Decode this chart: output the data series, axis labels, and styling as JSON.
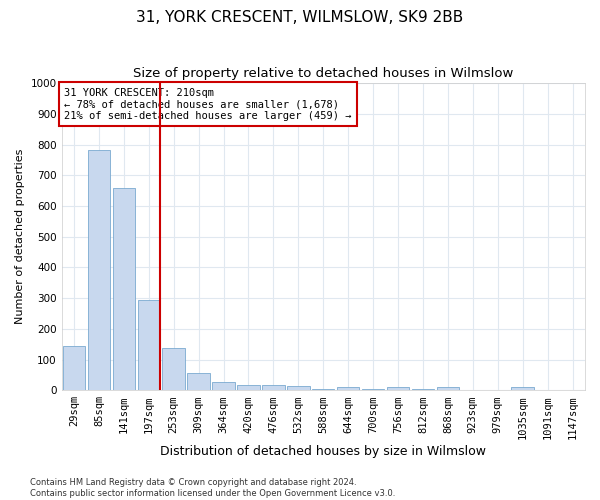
{
  "title": "31, YORK CRESCENT, WILMSLOW, SK9 2BB",
  "subtitle": "Size of property relative to detached houses in Wilmslow",
  "xlabel": "Distribution of detached houses by size in Wilmslow",
  "ylabel": "Number of detached properties",
  "categories": [
    "29sqm",
    "85sqm",
    "141sqm",
    "197sqm",
    "253sqm",
    "309sqm",
    "364sqm",
    "420sqm",
    "476sqm",
    "532sqm",
    "588sqm",
    "644sqm",
    "700sqm",
    "756sqm",
    "812sqm",
    "868sqm",
    "923sqm",
    "979sqm",
    "1035sqm",
    "1091sqm",
    "1147sqm"
  ],
  "values": [
    143,
    783,
    660,
    295,
    138,
    55,
    28,
    18,
    18,
    13,
    5,
    10,
    5,
    10,
    5,
    10,
    0,
    0,
    10,
    0,
    0
  ],
  "bar_color": "#c8d8ee",
  "bar_edge_color": "#7aaad0",
  "marker_line_color": "#cc0000",
  "annotation_line1": "31 YORK CRESCENT: 210sqm",
  "annotation_line2": "← 78% of detached houses are smaller (1,678)",
  "annotation_line3": "21% of semi-detached houses are larger (459) →",
  "annotation_box_color": "#cc0000",
  "ylim": [
    0,
    1000
  ],
  "yticks": [
    0,
    100,
    200,
    300,
    400,
    500,
    600,
    700,
    800,
    900,
    1000
  ],
  "footer1": "Contains HM Land Registry data © Crown copyright and database right 2024.",
  "footer2": "Contains public sector information licensed under the Open Government Licence v3.0.",
  "bg_color": "#ffffff",
  "plot_bg_color": "#ffffff",
  "grid_color": "#e0e8f0",
  "title_fontsize": 11,
  "subtitle_fontsize": 9.5,
  "xlabel_fontsize": 9,
  "ylabel_fontsize": 8,
  "tick_fontsize": 7.5,
  "annotation_fontsize": 7.5,
  "footer_fontsize": 6
}
